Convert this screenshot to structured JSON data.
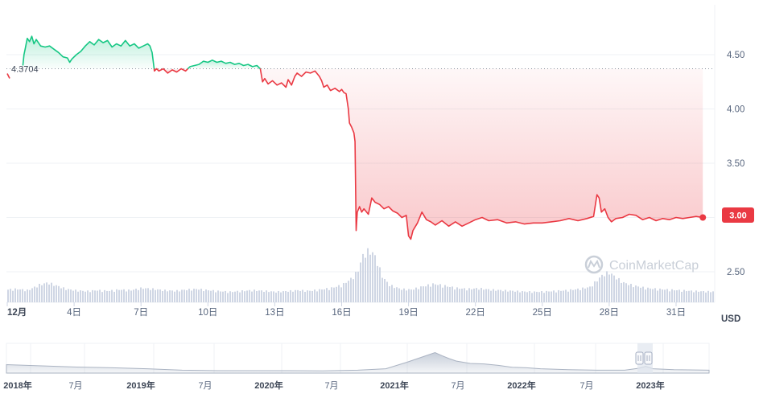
{
  "chart_data": {
    "type": "line",
    "currency_unit": "USD",
    "y_axis": {
      "ticks": [
        "2.50",
        "3.00",
        "3.50",
        "4.00",
        "4.50"
      ],
      "ylim": [
        2.3,
        4.95
      ]
    },
    "x_axis": {
      "ticks": [
        "12月",
        "4日",
        "7日",
        "10日",
        "13日",
        "16日",
        "19日",
        "22日",
        "25日",
        "28日",
        "31日"
      ],
      "range_days": [
        1,
        32
      ]
    },
    "reference_price": 4.3704,
    "reference_label": "4.3704",
    "current_price": 3.0,
    "current_label": "3.00",
    "colors": {
      "up": "#16c784",
      "down": "#ea3943",
      "volume": "#cfd6e4",
      "reference": "#8a939f"
    },
    "watermark": "CoinMarketCap",
    "price_series": [
      [
        1.7,
        4.4
      ],
      [
        1.75,
        4.5
      ],
      [
        1.8,
        4.55
      ],
      [
        1.85,
        4.6
      ],
      [
        1.9,
        4.65
      ],
      [
        2.0,
        4.62
      ],
      [
        2.1,
        4.67
      ],
      [
        2.2,
        4.6
      ],
      [
        2.3,
        4.64
      ],
      [
        2.5,
        4.58
      ],
      [
        2.7,
        4.57
      ],
      [
        2.9,
        4.58
      ],
      [
        3.1,
        4.55
      ],
      [
        3.3,
        4.52
      ],
      [
        3.5,
        4.48
      ],
      [
        3.7,
        4.47
      ],
      [
        3.8,
        4.43
      ],
      [
        3.9,
        4.46
      ],
      [
        4.1,
        4.5
      ],
      [
        4.3,
        4.53
      ],
      [
        4.5,
        4.58
      ],
      [
        4.7,
        4.62
      ],
      [
        4.9,
        4.59
      ],
      [
        5.1,
        4.64
      ],
      [
        5.3,
        4.61
      ],
      [
        5.5,
        4.63
      ],
      [
        5.7,
        4.57
      ],
      [
        5.9,
        4.6
      ],
      [
        6.1,
        4.58
      ],
      [
        6.3,
        4.63
      ],
      [
        6.5,
        4.58
      ],
      [
        6.7,
        4.6
      ],
      [
        6.9,
        4.56
      ],
      [
        7.1,
        4.58
      ],
      [
        7.3,
        4.6
      ],
      [
        7.4,
        4.58
      ],
      [
        7.5,
        4.52
      ],
      [
        7.6,
        4.35
      ],
      [
        7.7,
        4.37
      ],
      [
        7.8,
        4.35
      ],
      [
        8.0,
        4.37
      ],
      [
        8.2,
        4.33
      ],
      [
        8.4,
        4.36
      ],
      [
        8.6,
        4.34
      ],
      [
        8.8,
        4.37
      ],
      [
        9.0,
        4.35
      ],
      [
        9.2,
        4.39
      ],
      [
        9.4,
        4.4
      ],
      [
        9.6,
        4.41
      ],
      [
        9.8,
        4.44
      ],
      [
        10.0,
        4.43
      ],
      [
        10.2,
        4.45
      ],
      [
        10.4,
        4.43
      ],
      [
        10.6,
        4.44
      ],
      [
        10.8,
        4.42
      ],
      [
        11.0,
        4.43
      ],
      [
        11.2,
        4.41
      ],
      [
        11.4,
        4.42
      ],
      [
        11.6,
        4.4
      ],
      [
        11.8,
        4.41
      ],
      [
        12.0,
        4.39
      ],
      [
        12.2,
        4.4
      ],
      [
        12.35,
        4.37
      ],
      [
        12.45,
        4.25
      ],
      [
        12.55,
        4.28
      ],
      [
        12.7,
        4.23
      ],
      [
        12.9,
        4.26
      ],
      [
        13.1,
        4.22
      ],
      [
        13.3,
        4.24
      ],
      [
        13.5,
        4.2
      ],
      [
        13.6,
        4.27
      ],
      [
        13.75,
        4.22
      ],
      [
        13.9,
        4.3
      ],
      [
        14.0,
        4.33
      ],
      [
        14.2,
        4.3
      ],
      [
        14.4,
        4.34
      ],
      [
        14.6,
        4.33
      ],
      [
        14.8,
        4.35
      ],
      [
        15.0,
        4.3
      ],
      [
        15.1,
        4.26
      ],
      [
        15.2,
        4.2
      ],
      [
        15.35,
        4.22
      ],
      [
        15.5,
        4.17
      ],
      [
        15.7,
        4.19
      ],
      [
        15.9,
        4.16
      ],
      [
        16.0,
        4.18
      ],
      [
        16.1,
        4.15
      ],
      [
        16.2,
        4.14
      ],
      [
        16.3,
        4.0
      ],
      [
        16.35,
        3.87
      ],
      [
        16.45,
        3.83
      ],
      [
        16.55,
        3.78
      ],
      [
        16.6,
        3.7
      ],
      [
        16.65,
        2.88
      ],
      [
        16.7,
        3.05
      ],
      [
        16.8,
        3.1
      ],
      [
        16.9,
        3.05
      ],
      [
        17.0,
        3.08
      ],
      [
        17.2,
        3.03
      ],
      [
        17.35,
        3.18
      ],
      [
        17.5,
        3.14
      ],
      [
        17.7,
        3.12
      ],
      [
        17.9,
        3.08
      ],
      [
        18.1,
        3.1
      ],
      [
        18.3,
        3.06
      ],
      [
        18.5,
        3.04
      ],
      [
        18.7,
        3.0
      ],
      [
        18.9,
        3.02
      ],
      [
        19.0,
        2.83
      ],
      [
        19.1,
        2.8
      ],
      [
        19.2,
        2.88
      ],
      [
        19.4,
        2.95
      ],
      [
        19.6,
        3.05
      ],
      [
        19.8,
        2.98
      ],
      [
        20.0,
        2.96
      ],
      [
        20.2,
        2.93
      ],
      [
        20.5,
        2.97
      ],
      [
        20.8,
        2.92
      ],
      [
        21.1,
        2.96
      ],
      [
        21.4,
        2.92
      ],
      [
        21.7,
        2.95
      ],
      [
        22.0,
        2.98
      ],
      [
        22.3,
        3.0
      ],
      [
        22.6,
        2.97
      ],
      [
        23.0,
        2.98
      ],
      [
        23.4,
        2.95
      ],
      [
        23.8,
        2.96
      ],
      [
        24.2,
        2.94
      ],
      [
        24.6,
        2.95
      ],
      [
        25.0,
        2.95
      ],
      [
        25.4,
        2.96
      ],
      [
        25.8,
        2.97
      ],
      [
        26.2,
        2.99
      ],
      [
        26.6,
        2.97
      ],
      [
        27.0,
        2.99
      ],
      [
        27.3,
        3.01
      ],
      [
        27.45,
        3.21
      ],
      [
        27.55,
        3.18
      ],
      [
        27.65,
        3.05
      ],
      [
        27.8,
        3.08
      ],
      [
        27.95,
        3.0
      ],
      [
        28.1,
        2.96
      ],
      [
        28.3,
        2.99
      ],
      [
        28.6,
        3.0
      ],
      [
        28.9,
        3.03
      ],
      [
        29.2,
        3.02
      ],
      [
        29.5,
        2.98
      ],
      [
        29.8,
        3.0
      ],
      [
        30.1,
        2.97
      ],
      [
        30.4,
        2.99
      ],
      [
        30.7,
        2.98
      ],
      [
        31.0,
        3.0
      ],
      [
        31.3,
        2.99
      ],
      [
        31.6,
        3.0
      ],
      [
        31.9,
        3.01
      ],
      [
        32.2,
        3.0
      ]
    ],
    "volume_series": [
      [
        0.9,
        0.4
      ],
      [
        1.4,
        0.42
      ],
      [
        1.9,
        0.38
      ],
      [
        2.4,
        0.55
      ],
      [
        2.8,
        0.62
      ],
      [
        3.2,
        0.52
      ],
      [
        3.6,
        0.42
      ],
      [
        4.0,
        0.38
      ],
      [
        4.5,
        0.35
      ],
      [
        5.0,
        0.38
      ],
      [
        5.5,
        0.36
      ],
      [
        6.0,
        0.4
      ],
      [
        6.5,
        0.38
      ],
      [
        7.0,
        0.45
      ],
      [
        7.5,
        0.42
      ],
      [
        8.0,
        0.38
      ],
      [
        8.5,
        0.36
      ],
      [
        9.0,
        0.4
      ],
      [
        9.5,
        0.42
      ],
      [
        10.0,
        0.38
      ],
      [
        10.5,
        0.35
      ],
      [
        11.0,
        0.33
      ],
      [
        11.5,
        0.36
      ],
      [
        12.0,
        0.38
      ],
      [
        12.5,
        0.36
      ],
      [
        13.0,
        0.33
      ],
      [
        13.5,
        0.35
      ],
      [
        14.0,
        0.38
      ],
      [
        14.5,
        0.36
      ],
      [
        15.0,
        0.4
      ],
      [
        15.5,
        0.45
      ],
      [
        16.0,
        0.55
      ],
      [
        16.4,
        0.75
      ],
      [
        16.7,
        1.0
      ],
      [
        16.9,
        1.45
      ],
      [
        17.1,
        1.62
      ],
      [
        17.4,
        1.55
      ],
      [
        17.6,
        1.2
      ],
      [
        17.8,
        0.8
      ],
      [
        18.1,
        0.55
      ],
      [
        18.6,
        0.42
      ],
      [
        19.1,
        0.4
      ],
      [
        19.6,
        0.5
      ],
      [
        20.1,
        0.58
      ],
      [
        20.6,
        0.52
      ],
      [
        21.1,
        0.45
      ],
      [
        21.6,
        0.42
      ],
      [
        22.1,
        0.44
      ],
      [
        22.6,
        0.4
      ],
      [
        23.1,
        0.38
      ],
      [
        23.6,
        0.36
      ],
      [
        24.1,
        0.34
      ],
      [
        24.6,
        0.33
      ],
      [
        25.1,
        0.34
      ],
      [
        25.6,
        0.36
      ],
      [
        26.1,
        0.38
      ],
      [
        26.6,
        0.42
      ],
      [
        27.1,
        0.48
      ],
      [
        27.4,
        0.68
      ],
      [
        27.7,
        0.88
      ],
      [
        27.95,
        0.95
      ],
      [
        28.2,
        0.82
      ],
      [
        28.6,
        0.62
      ],
      [
        29.1,
        0.52
      ],
      [
        29.6,
        0.45
      ],
      [
        30.1,
        0.42
      ],
      [
        30.6,
        0.4
      ],
      [
        31.1,
        0.38
      ],
      [
        31.6,
        0.36
      ],
      [
        32.3,
        0.34
      ]
    ],
    "navigator": {
      "ticks": [
        "2018年",
        "7月",
        "2019年",
        "7月",
        "2020年",
        "7月",
        "2021年",
        "7月",
        "2022年",
        "7月",
        "2023年"
      ],
      "bold_ticks": [
        0,
        2,
        4,
        6,
        8,
        10
      ],
      "profile": [
        [
          0,
          0.35
        ],
        [
          0.05,
          0.3
        ],
        [
          0.1,
          0.25
        ],
        [
          0.15,
          0.22
        ],
        [
          0.2,
          0.18
        ],
        [
          0.25,
          0.12
        ],
        [
          0.3,
          0.1
        ],
        [
          0.35,
          0.1
        ],
        [
          0.4,
          0.1
        ],
        [
          0.45,
          0.09
        ],
        [
          0.5,
          0.12
        ],
        [
          0.54,
          0.18
        ],
        [
          0.57,
          0.45
        ],
        [
          0.59,
          0.65
        ],
        [
          0.61,
          0.85
        ],
        [
          0.62,
          0.72
        ],
        [
          0.63,
          0.6
        ],
        [
          0.64,
          0.5
        ],
        [
          0.66,
          0.4
        ],
        [
          0.68,
          0.38
        ],
        [
          0.7,
          0.32
        ],
        [
          0.72,
          0.24
        ],
        [
          0.74,
          0.22
        ],
        [
          0.76,
          0.18
        ],
        [
          0.8,
          0.14
        ],
        [
          0.84,
          0.12
        ],
        [
          0.88,
          0.12
        ],
        [
          0.9,
          0.2
        ],
        [
          0.91,
          0.28
        ],
        [
          0.92,
          0.18
        ],
        [
          0.95,
          0.14
        ],
        [
          1.0,
          0.12
        ]
      ]
    }
  }
}
